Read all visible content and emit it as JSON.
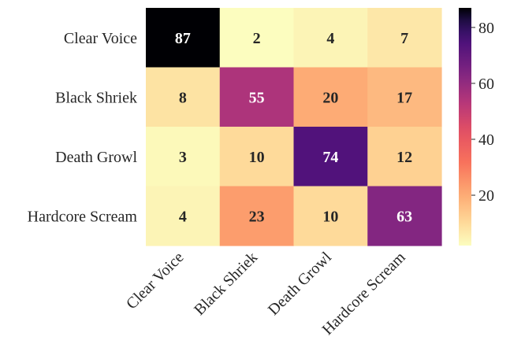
{
  "chart_data": {
    "type": "heatmap",
    "rows": [
      "Clear Voice",
      "Black Shriek",
      "Death Growl",
      "Hardcore Scream"
    ],
    "columns": [
      "Clear Voice",
      "Black Shriek",
      "Death Growl",
      "Hardcore Scream"
    ],
    "values": [
      [
        87,
        2,
        4,
        7
      ],
      [
        8,
        55,
        20,
        17
      ],
      [
        3,
        10,
        74,
        12
      ],
      [
        4,
        23,
        10,
        63
      ]
    ],
    "colorbar": {
      "min": 2,
      "max": 87,
      "ticks": [
        20,
        40,
        60,
        80
      ],
      "colormap": "magma_r"
    },
    "title": "",
    "xlabel": "",
    "ylabel": ""
  }
}
